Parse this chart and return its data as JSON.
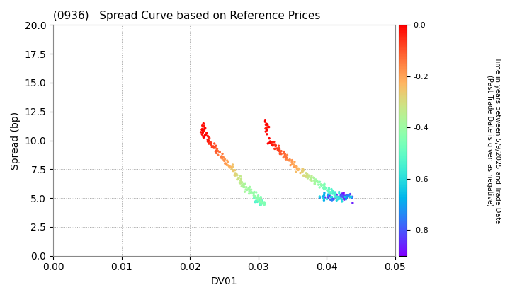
{
  "title": "(0936)   Spread Curve based on Reference Prices",
  "xlabel": "DV01",
  "ylabel": "Spread (bp)",
  "xlim": [
    0.0,
    0.05
  ],
  "ylim": [
    0.0,
    20.0
  ],
  "xticks": [
    0.0,
    0.01,
    0.02,
    0.03,
    0.04,
    0.05
  ],
  "yticks": [
    0.0,
    2.5,
    5.0,
    7.5,
    10.0,
    12.5,
    15.0,
    17.5,
    20.0
  ],
  "colorbar_label": "Time in years between 5/9/2025 and Trade Date\n(Past Trade Date is given as negative)",
  "colorbar_vmin": -0.9,
  "colorbar_vmax": 0.0,
  "colorbar_ticks": [
    0.0,
    -0.2,
    -0.4,
    -0.6,
    -0.8
  ],
  "cmap": "rainbow",
  "background": "#ffffff",
  "grid_color": "#aaaaaa",
  "marker_size": 6
}
